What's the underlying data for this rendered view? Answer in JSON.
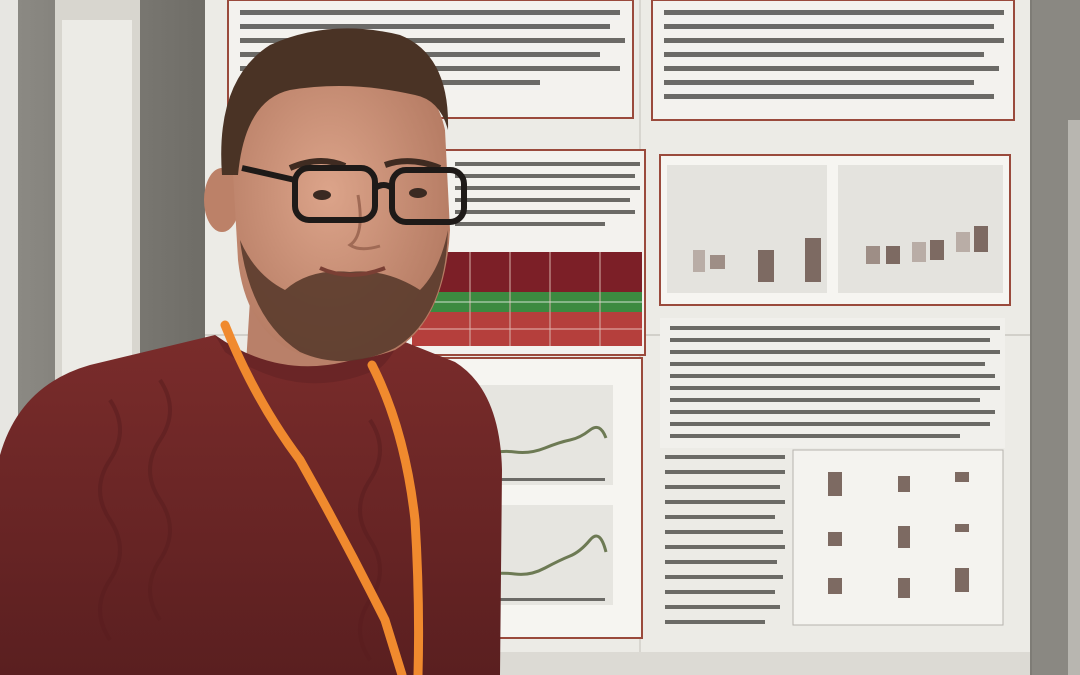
{
  "photo": {
    "subject": "person-at-scientific-poster",
    "colors": {
      "wall": "#7a7872",
      "board": "#d9d7d0",
      "paper": "#efeee9",
      "sweater": "#6e2626",
      "lanyard": "#f08a2e",
      "skin": "#c98f76",
      "hair": "#4a3325",
      "table_green": "#3c8a40",
      "table_red": "#b53f3c",
      "chart_bar": "#7d6a62"
    }
  }
}
